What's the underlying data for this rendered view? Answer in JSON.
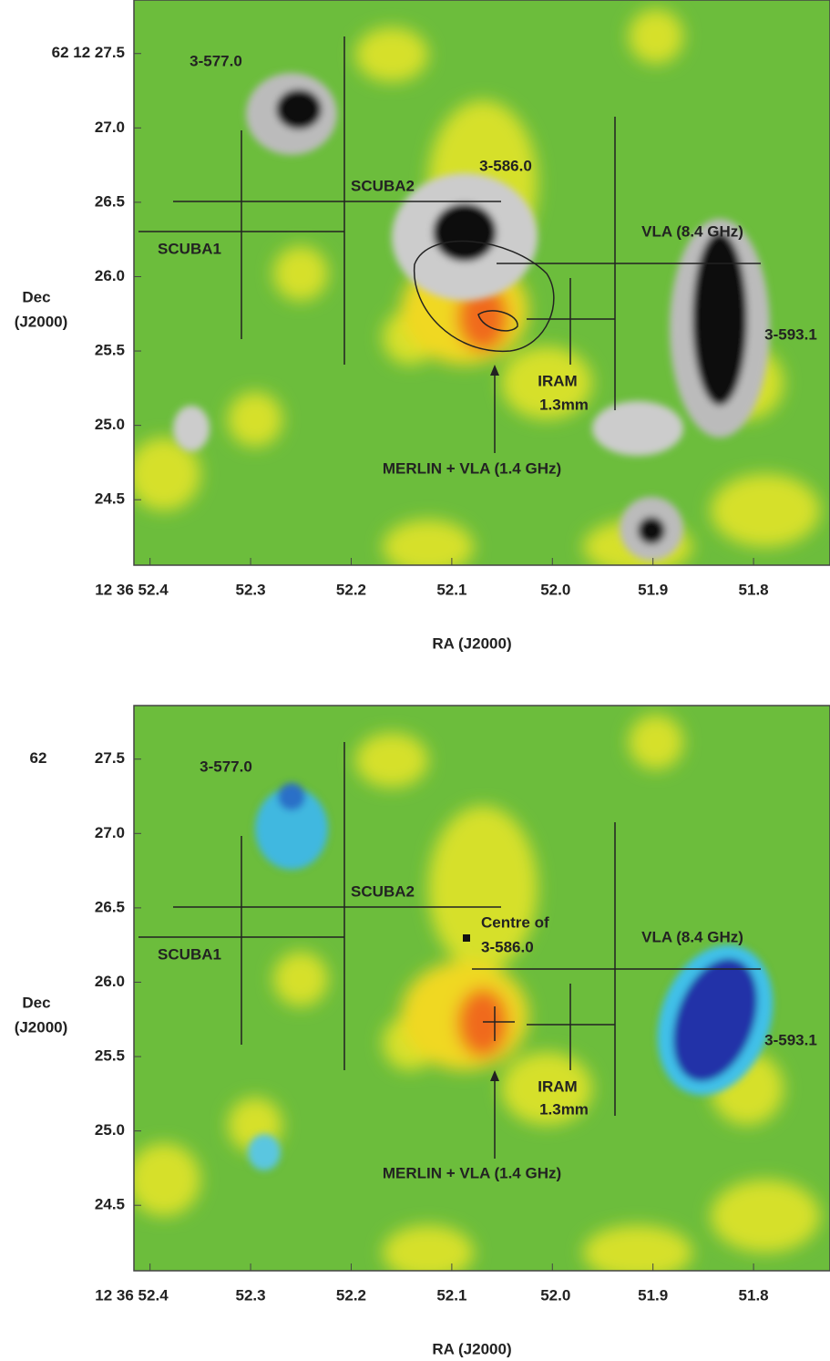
{
  "chart_data": [
    {
      "type": "image",
      "ylabel": "Dec",
      "ylabel2": "(J2000)",
      "xlabel": "RA (J2000)",
      "xlim": [
        52.416,
        51.724
      ],
      "ylim": [
        24.06,
        27.86
      ],
      "xticks": [
        {
          "value": 52.4,
          "label": "12 36 52.4"
        },
        52.3,
        52.2,
        52.1,
        {
          "value": 52.0,
          "label": "52.0"
        },
        51.9,
        51.8
      ],
      "yticks": [
        24.5,
        {
          "value": 25.0,
          "label": "25.0"
        },
        25.5,
        {
          "value": 26.0,
          "label": "26.0"
        },
        26.5,
        {
          "value": 27.0,
          "label": "27.0"
        },
        {
          "value": 27.5,
          "label": "62 12 27.5"
        }
      ],
      "annotations": [
        "3-577.0",
        "SCUBA2",
        "3-586.0",
        "SCUBA1",
        "VLA  (8.4 GHz)",
        "3-593.1",
        "IRAM",
        "1.3mm",
        "MERLIN + VLA  (1.4 GHz)"
      ]
    },
    {
      "type": "image",
      "ylabel": "Dec",
      "ylabel2": "(J2000)",
      "xlabel": "RA (J2000)",
      "ytick_prefix": "62",
      "xlim": [
        52.416,
        51.724
      ],
      "ylim": [
        24.06,
        27.86
      ],
      "xticks": [
        {
          "value": 52.4,
          "label": "12 36 52.4"
        },
        52.3,
        52.2,
        52.1,
        {
          "value": 52.0,
          "label": "52.0"
        },
        51.9,
        51.8
      ],
      "yticks": [
        24.5,
        {
          "value": 25.0,
          "label": "25.0"
        },
        25.5,
        {
          "value": 26.0,
          "label": "26.0"
        },
        26.5,
        {
          "value": 27.0,
          "label": "27.0"
        },
        27.5
      ],
      "annotations": [
        "3-577.0",
        "SCUBA2",
        "Centre of",
        "3-586.0",
        "SCUBA1",
        "VLA  (8.4 GHz)",
        "3-593.1",
        "IRAM",
        "1.3mm",
        "MERLIN + VLA  (1.4 GHz)"
      ]
    }
  ]
}
